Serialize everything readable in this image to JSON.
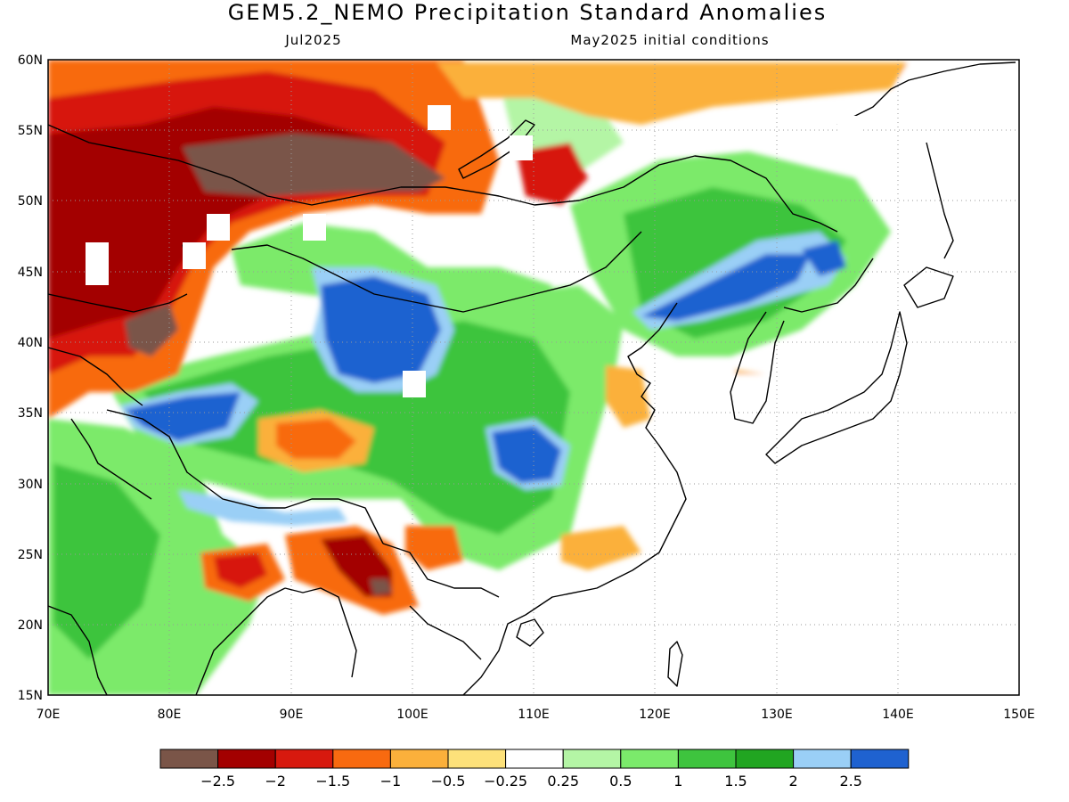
{
  "header": {
    "title": "GEM5.2_NEMO Precipitation Standard Anomalies",
    "valid_month": "Jul2025",
    "init_label": "May2025 initial conditions"
  },
  "map": {
    "lat_labels": [
      "60N",
      "55N",
      "50N",
      "45N",
      "40N",
      "35N",
      "30N",
      "25N",
      "20N",
      "15N"
    ],
    "lon_labels": [
      "70E",
      "80E",
      "90E",
      "100E",
      "110E",
      "120E",
      "130E",
      "140E",
      "150E"
    ],
    "lon_range": [
      70,
      150
    ],
    "lat_range": [
      15,
      60
    ]
  },
  "colorbar": {
    "colors": [
      "#7a5548",
      "#a30000",
      "#d7190e",
      "#f86a10",
      "#fbb03b",
      "#fde17a",
      "#ffffff",
      "#b4f5a5",
      "#7bea6b",
      "#3ec43e",
      "#21a521",
      "#9acff6",
      "#1f62d0"
    ],
    "labels": [
      "−2.5",
      "−2",
      "−1.5",
      "−1",
      "−0.5",
      "−0.25",
      "0.25",
      "0.5",
      "1",
      "1.5",
      "2",
      "2.5"
    ]
  }
}
